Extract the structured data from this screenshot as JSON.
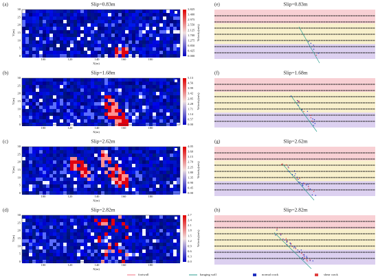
{
  "left_panels": [
    {
      "label": "(a)",
      "title": "Slip=0.83m",
      "colorbar_label": "Velocity(m/s)",
      "colorbar_ticks": [
        "3.825",
        "3.400",
        "2.975",
        "2.550",
        "2.125",
        "1.700",
        "1.275",
        "0.850",
        "0.425",
        "0.000"
      ]
    },
    {
      "label": "(b)",
      "title": "Slip=1.68m",
      "colorbar_label": "Velocity(m/s)",
      "colorbar_ticks": [
        "5.13",
        "4.56",
        "3.99",
        "3.42",
        "2.85",
        "2.28",
        "1.71",
        "1.14",
        "0.57",
        "0.00"
      ]
    },
    {
      "label": "(c)",
      "title": "Slip=2.62m",
      "colorbar_label": "Velocity(m/s)",
      "colorbar_ticks": [
        "4.05",
        "3.60",
        "3.15",
        "2.70",
        "2.25",
        "1.80",
        "1.35",
        "0.90",
        "0.45",
        "0.00"
      ]
    },
    {
      "label": "(d)",
      "title": "Slip=2.82m",
      "colorbar_label": "Velocity(m/s)",
      "colorbar_ticks": [
        "2.7",
        "2.4",
        "2.1",
        "1.8",
        "1.5",
        "1.2",
        "0.9",
        "0.6",
        "0.3",
        "0.0"
      ]
    }
  ],
  "right_panels": [
    {
      "label": "(e)",
      "title": "Slip=0.83m"
    },
    {
      "label": "(f)",
      "title": "Slip=1.68m"
    },
    {
      "label": "(g)",
      "title": "Slip=2.62m"
    },
    {
      "label": "(h)",
      "title": "Slip=2.82m"
    }
  ],
  "x_axis_label": "X(m)",
  "y_axis_label": "Y(m)",
  "x_ticks": [
    "100",
    "120",
    "140",
    "160",
    "180"
  ],
  "y_ticks": [
    "0",
    "5",
    "10",
    "15",
    "20",
    "25",
    "30"
  ],
  "legend": [
    "footwall",
    "hanging wall",
    "normal crack",
    "shear crack"
  ]
}
